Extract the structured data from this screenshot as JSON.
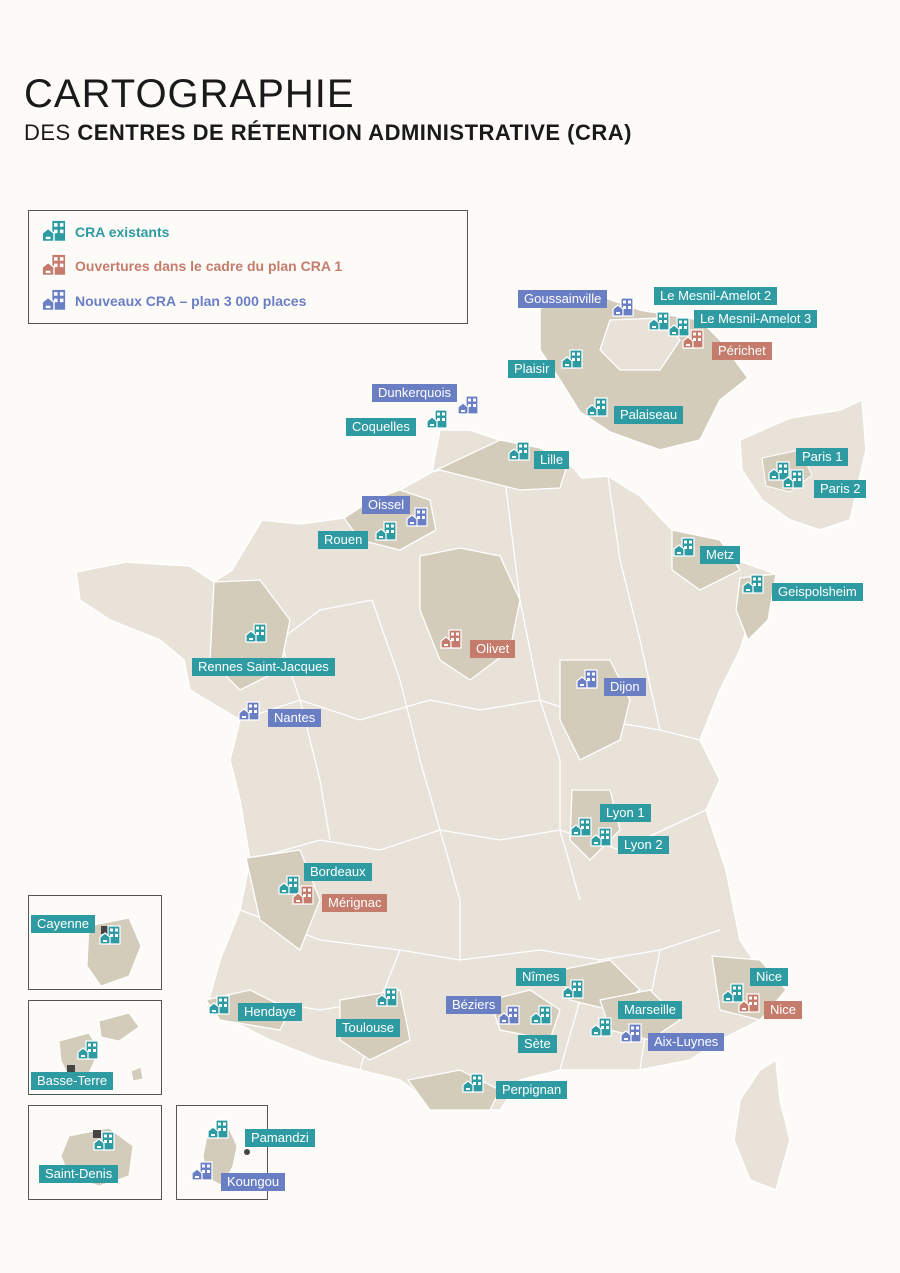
{
  "title": {
    "line1": "CARTOGRAPHIE",
    "line2_prefix": "DES ",
    "line2_bold": "CENTRES DE RÉTENTION ADMINISTRATIVE (CRA)"
  },
  "colors": {
    "existing": "#2e9ba3",
    "plan1": "#c57c6c",
    "new": "#6a7ec4",
    "land": "#e8e2d9",
    "highlight": "#d4ccbb"
  },
  "legend": {
    "existing": "CRA existants",
    "plan1": "Ouvertures dans le cadre du plan CRA 1",
    "new": "Nouveaux CRA – plan 3 000 places"
  },
  "labels": {
    "goussainville": "Goussainville",
    "mesnil2": "Le Mesnil-Amelot 2",
    "mesnil3": "Le Mesnil-Amelot 3",
    "perichet": "Périchet",
    "plaisir": "Plaisir",
    "palaiseau": "Palaiseau",
    "paris1": "Paris 1",
    "paris2": "Paris 2",
    "dunkerquois": "Dunkerquois",
    "coquelles": "Coquelles",
    "lille": "Lille",
    "oissel": "Oissel",
    "rouen": "Rouen",
    "metz": "Metz",
    "geispolsheim": "Geispolsheim",
    "rennes": "Rennes Saint-Jacques",
    "olivet": "Olivet",
    "dijon": "Dijon",
    "nantes": "Nantes",
    "lyon1": "Lyon 1",
    "lyon2": "Lyon 2",
    "bordeaux": "Bordeaux",
    "merignac": "Mérignac",
    "hendaye": "Hendaye",
    "toulouse": "Toulouse",
    "nimes": "Nîmes",
    "beziers": "Béziers",
    "sete": "Sète",
    "marseille": "Marseille",
    "aixluynes": "Aix-Luynes",
    "nice1": "Nice",
    "nice2": "Nice",
    "perpignan": "Perpignan",
    "cayenne": "Cayenne",
    "basseterre": "Basse-Terre",
    "saintdenis": "Saint-Denis",
    "pamandzi": "Pamandzi",
    "koungou": "Koungou"
  }
}
